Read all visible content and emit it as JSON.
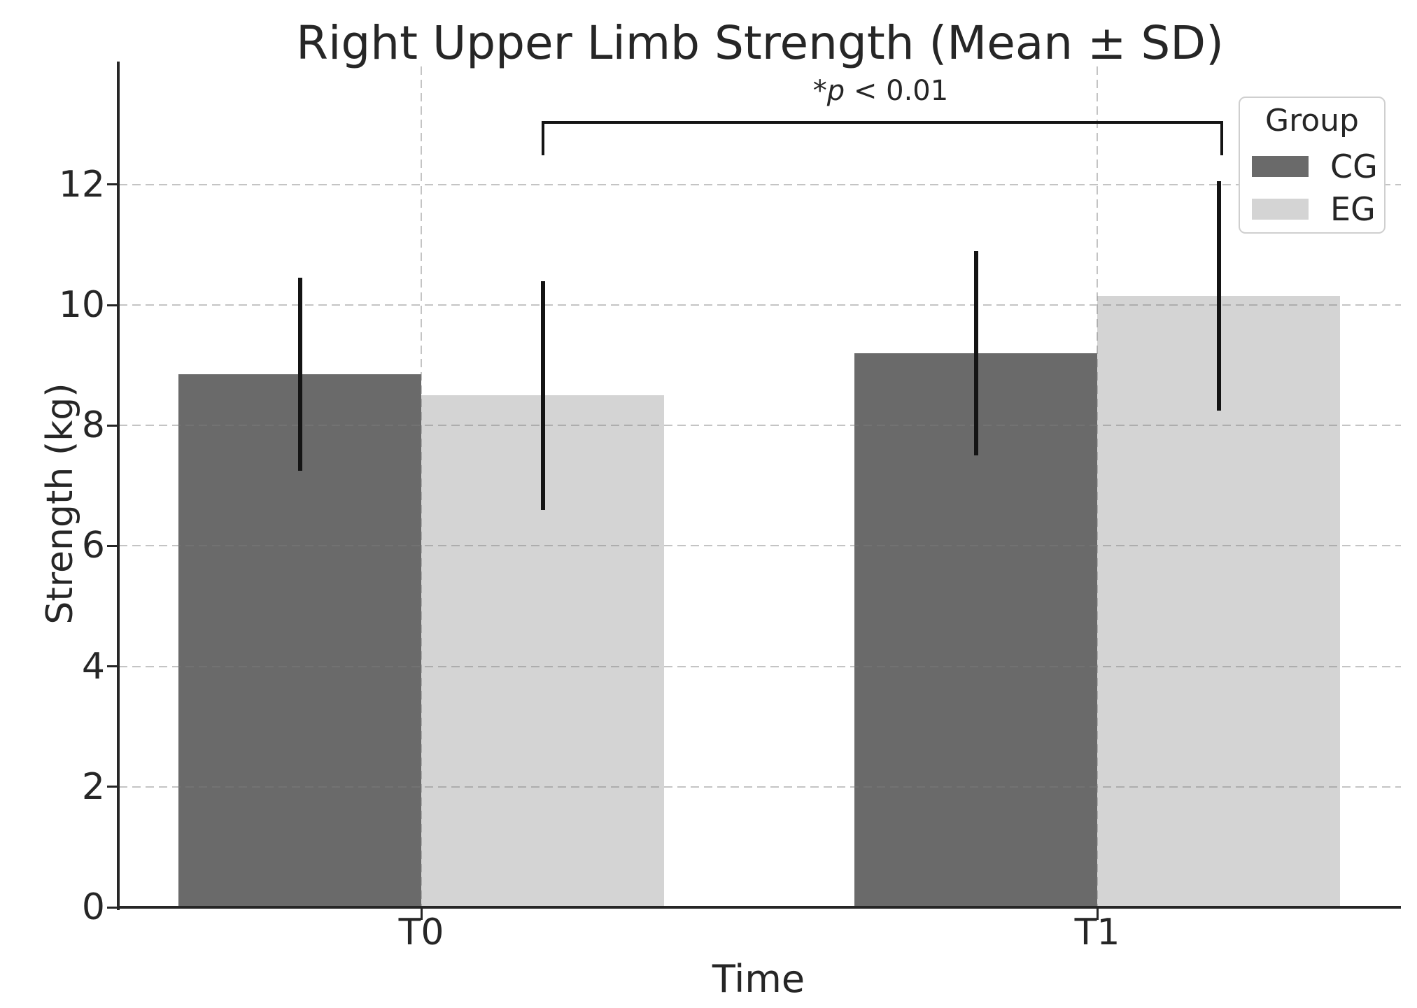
{
  "title": "Right Upper Limb Strength (Mean ± SD)",
  "annotation": {
    "star": "*",
    "variable": "p",
    "comparison": " < 0.01",
    "text": "*p < 0.01"
  },
  "legend": {
    "title": "Group",
    "entries": [
      "CG",
      "EG"
    ]
  },
  "axes": {
    "xlabel": "Time",
    "ylabel": "Strength (kg)",
    "xticks": [
      "T0",
      "T1"
    ],
    "yticks": [
      "0",
      "2",
      "4",
      "6",
      "8",
      "10",
      "12"
    ]
  },
  "colors": {
    "cg": "#6a6a6a",
    "eg": "#d4d4d4",
    "error_bar": "#141414",
    "grid": "#c7c7c7",
    "spine": "#262626",
    "text": "#262626",
    "legend_border": "#cfcfcf"
  },
  "chart_data": {
    "type": "bar",
    "title": "Right Upper Limb Strength (Mean ± SD)",
    "xlabel": "Time",
    "ylabel": "Strength (kg)",
    "categories": [
      "T0",
      "T1"
    ],
    "series": [
      {
        "name": "CG",
        "color": "#6a6a6a",
        "means": [
          8.85,
          9.2
        ],
        "sd": [
          1.6,
          1.7
        ],
        "upper": [
          10.45,
          10.9
        ],
        "lower": [
          7.25,
          7.5
        ]
      },
      {
        "name": "EG",
        "color": "#d4d4d4",
        "means": [
          8.5,
          10.15
        ],
        "sd": [
          1.9,
          1.9
        ],
        "upper": [
          10.4,
          12.05
        ],
        "lower": [
          6.6,
          8.25
        ]
      }
    ],
    "yticks": [
      0,
      2,
      4,
      6,
      8,
      10,
      12
    ],
    "ylim": [
      0,
      13.9
    ],
    "grid": "dashed gray, horizontal at each ytick and vertical at each category, drawn over bars",
    "legend_position": "upper right",
    "legend_title": "Group",
    "error_bar_style": "vertical line, mean ± SD, black",
    "significance": {
      "label": "*p < 0.01",
      "from": {
        "category": "T0",
        "series": "EG"
      },
      "to": {
        "category": "T1",
        "series": "EG"
      },
      "bracket": "black square bracket above bars with downward end ticks"
    }
  }
}
